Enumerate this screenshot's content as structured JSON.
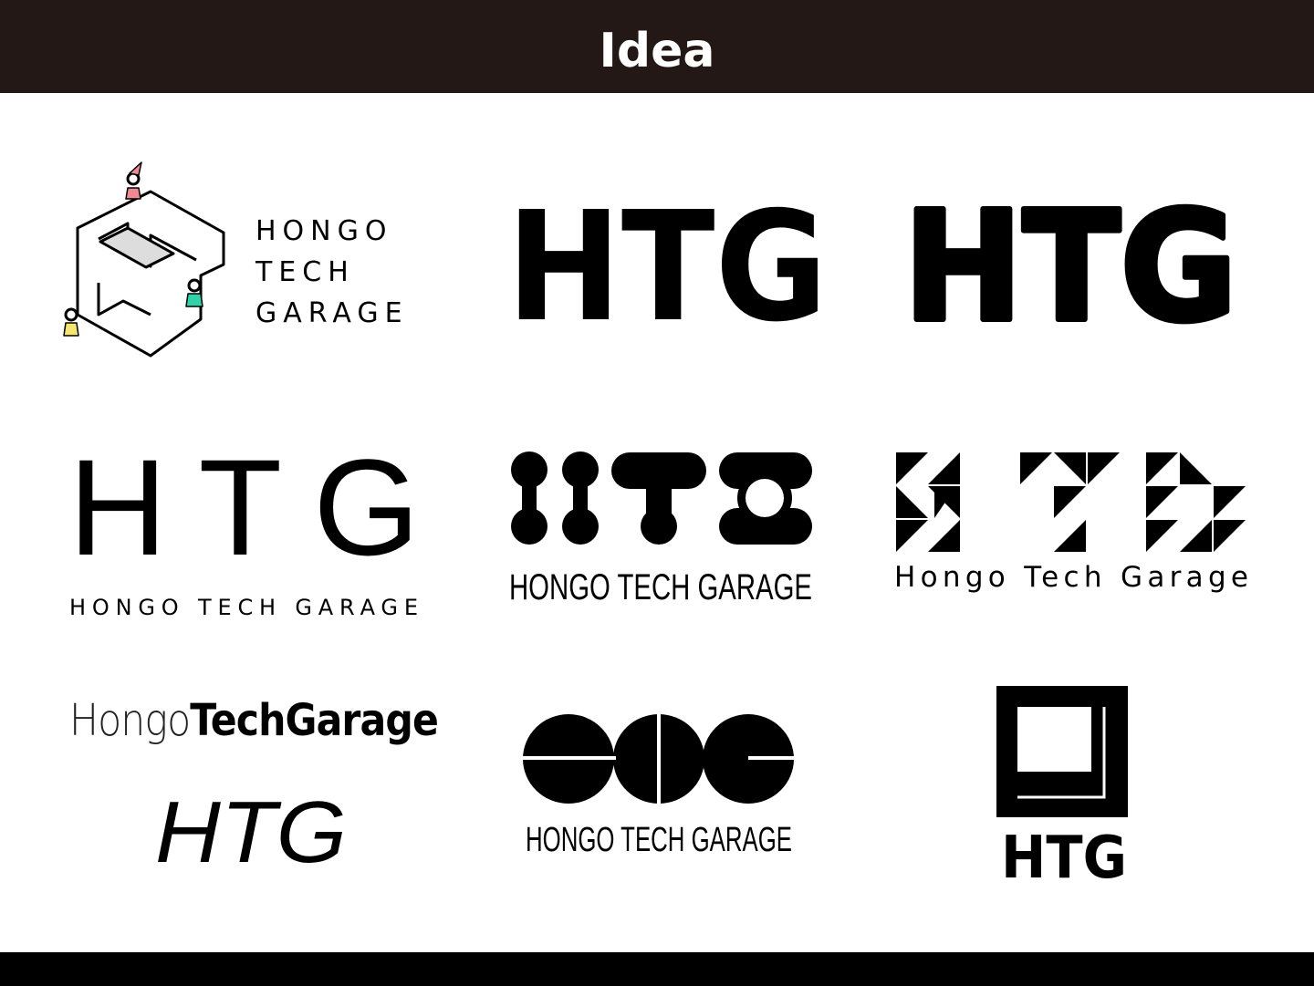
{
  "header": {
    "title": "Idea"
  },
  "logos": [
    {
      "lines": [
        "HONGO",
        "TECH",
        "GARAGE"
      ]
    },
    {
      "mark": "HTG"
    },
    {
      "mark": "HTG"
    },
    {
      "mark": "HTG",
      "wordmark": "HONGO TECH GARAGE"
    },
    {
      "wordmark": "HONGO TECH GARAGE"
    },
    {
      "wordmark": "Hongo Tech Garage"
    },
    {
      "wordmark_light": "Hongo",
      "wordmark_bold": "TechGarage",
      "mark": "HTG"
    },
    {
      "wordmark": "HONGO TECH GARAGE"
    },
    {
      "mark": "HTG"
    }
  ]
}
